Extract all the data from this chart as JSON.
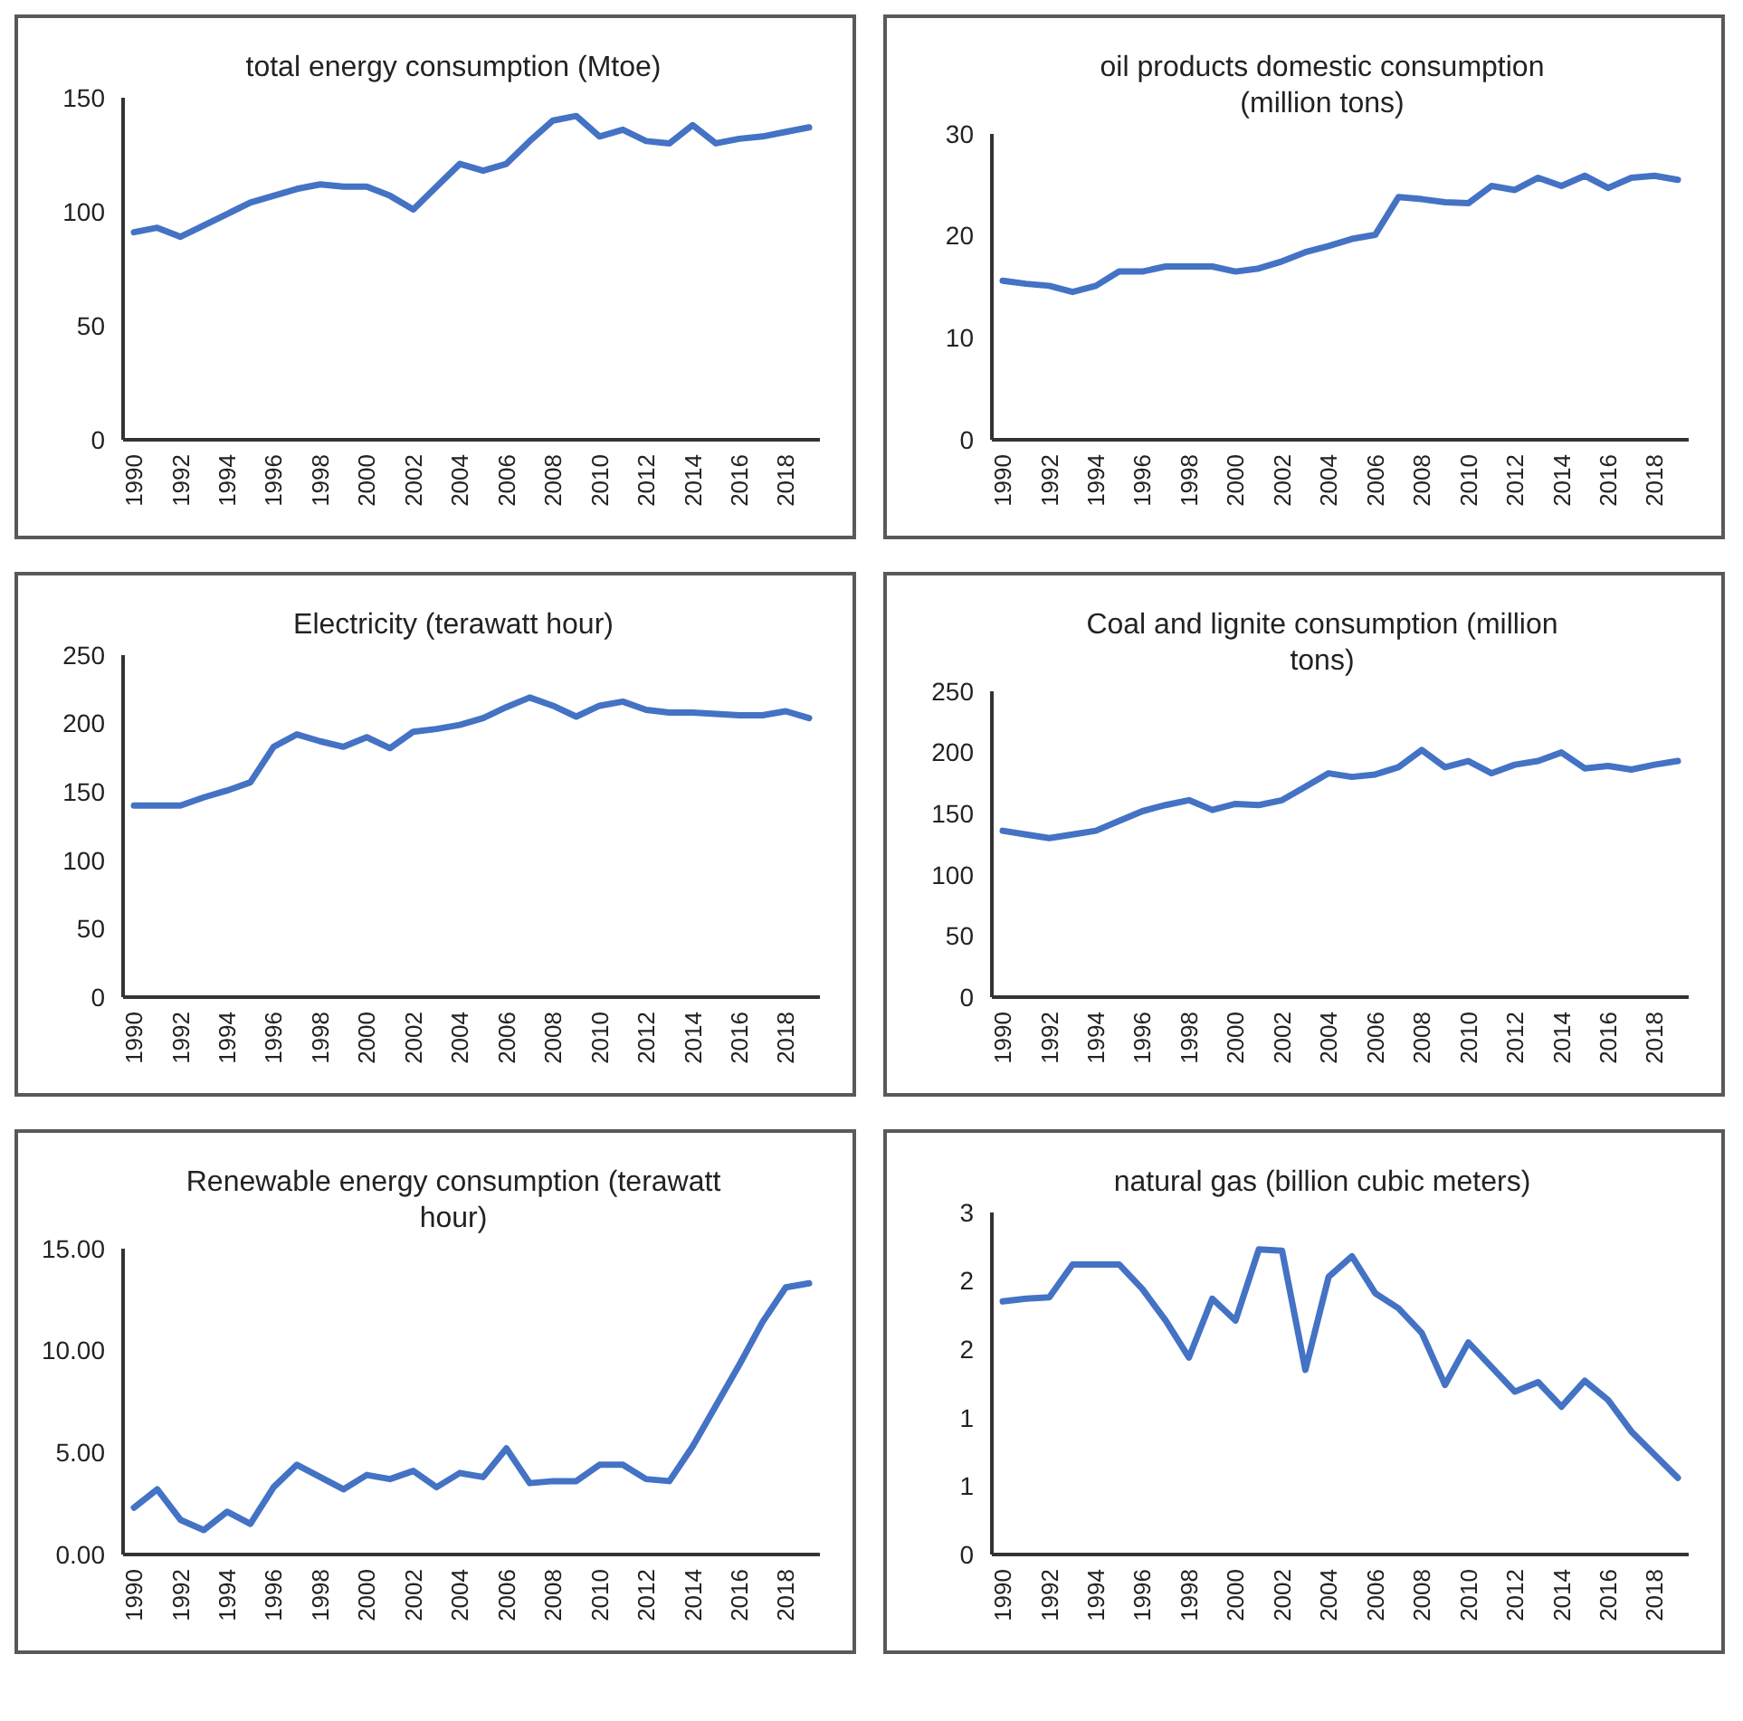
{
  "chart_data": [
    {
      "type": "line",
      "title": "total energy consumption (Mtoe)",
      "categories": [
        "1990",
        null,
        "1992",
        null,
        "1994",
        null,
        "1996",
        null,
        "1998",
        null,
        "2000",
        null,
        "2002",
        null,
        "2004",
        null,
        "2006",
        null,
        "2008",
        null,
        "2010",
        null,
        "2012",
        null,
        "2014",
        null,
        "2016",
        null,
        "2018",
        null
      ],
      "series": [
        {
          "color": "#4472c4",
          "values": [
            91,
            93,
            89,
            94,
            99,
            104,
            107,
            110,
            112,
            111,
            111,
            107,
            101,
            111,
            121,
            118,
            121,
            131,
            140,
            142,
            133,
            136,
            131,
            130,
            138,
            130,
            132,
            133,
            135,
            137
          ]
        }
      ],
      "ylim": [
        0,
        150
      ],
      "yticks": [
        0,
        50,
        100,
        150
      ]
    },
    {
      "type": "line",
      "title": "oil products domestic consumption (million tons)",
      "categories": [
        "1990",
        null,
        "1992",
        null,
        "1994",
        null,
        "1996",
        null,
        "1998",
        null,
        "2000",
        null,
        "2002",
        null,
        "2004",
        null,
        "2006",
        null,
        "2008",
        null,
        "2010",
        null,
        "2012",
        null,
        "2014",
        null,
        "2016",
        null,
        "2018",
        null
      ],
      "series": [
        {
          "color": "#4472c4",
          "values": [
            15.6,
            15.3,
            15.1,
            14.5,
            15.1,
            16.5,
            16.5,
            17.0,
            17.0,
            17.0,
            16.5,
            16.8,
            17.5,
            18.4,
            19.0,
            19.7,
            20.1,
            23.8,
            23.6,
            23.3,
            23.2,
            24.9,
            24.5,
            25.7,
            24.9,
            25.9,
            24.7,
            25.7,
            25.9,
            25.5
          ]
        }
      ],
      "ylim": [
        0,
        30
      ],
      "yticks": [
        0,
        10,
        20,
        30
      ]
    },
    {
      "type": "line",
      "title": "Electricity (terawatt hour)",
      "categories": [
        "1990",
        null,
        "1992",
        null,
        "1994",
        null,
        "1996",
        null,
        "1998",
        null,
        "2000",
        null,
        "2002",
        null,
        "2004",
        null,
        "2006",
        null,
        "2008",
        null,
        "2010",
        null,
        "2012",
        null,
        "2014",
        null,
        "2016",
        null,
        "2018",
        null
      ],
      "series": [
        {
          "color": "#4472c4",
          "values": [
            140,
            140,
            140,
            146,
            151,
            157,
            183,
            192,
            187,
            183,
            190,
            182,
            194,
            196,
            199,
            204,
            212,
            219,
            213,
            205,
            213,
            216,
            210,
            208,
            208,
            207,
            206,
            206,
            209,
            204
          ]
        }
      ],
      "ylim": [
        0,
        250
      ],
      "yticks": [
        0,
        50,
        100,
        150,
        200,
        250
      ]
    },
    {
      "type": "line",
      "title": "Coal and lignite consumption (million tons)",
      "categories": [
        "1990",
        null,
        "1992",
        null,
        "1994",
        null,
        "1996",
        null,
        "1998",
        null,
        "2000",
        null,
        "2002",
        null,
        "2004",
        null,
        "2006",
        null,
        "2008",
        null,
        "2010",
        null,
        "2012",
        null,
        "2014",
        null,
        "2016",
        null,
        "2018",
        null
      ],
      "series": [
        {
          "color": "#4472c4",
          "values": [
            136,
            133,
            130,
            133,
            136,
            144,
            152,
            157,
            161,
            153,
            158,
            157,
            161,
            172,
            183,
            180,
            182,
            188,
            202,
            188,
            193,
            183,
            190,
            193,
            200,
            187,
            189,
            186,
            190,
            193
          ]
        }
      ],
      "ylim": [
        0,
        250
      ],
      "yticks": [
        0,
        50,
        100,
        150,
        200,
        250
      ]
    },
    {
      "type": "line",
      "title": "Renewable energy consumption (terawatt hour)",
      "categories": [
        "1990",
        null,
        "1992",
        null,
        "1994",
        null,
        "1996",
        null,
        "1998",
        null,
        "2000",
        null,
        "2002",
        null,
        "2004",
        null,
        "2006",
        null,
        "2008",
        null,
        "2010",
        null,
        "2012",
        null,
        "2014",
        null,
        "2016",
        null,
        "2018",
        null
      ],
      "series": [
        {
          "color": "#4472c4",
          "values": [
            2.3,
            3.2,
            1.7,
            1.2,
            2.1,
            1.5,
            3.3,
            4.4,
            3.8,
            3.2,
            3.9,
            3.7,
            4.1,
            3.3,
            4.0,
            3.8,
            5.2,
            3.5,
            3.6,
            3.6,
            4.4,
            4.4,
            3.7,
            3.6,
            5.3,
            7.3,
            9.3,
            11.4,
            13.1,
            13.3
          ]
        }
      ],
      "ylim": [
        0,
        15
      ],
      "yticks": [
        {
          "value": 0,
          "label": "0.00"
        },
        {
          "value": 5,
          "label": "5.00"
        },
        {
          "value": 10,
          "label": "10.00"
        },
        {
          "value": 15,
          "label": "15.00"
        }
      ]
    },
    {
      "type": "line",
      "title": "natural gas (billion cubic meters)",
      "categories": [
        "1990",
        null,
        "1992",
        null,
        "1994",
        null,
        "1996",
        null,
        "1998",
        null,
        "2000",
        null,
        "2002",
        null,
        "2004",
        null,
        "2006",
        null,
        "2008",
        null,
        "2010",
        null,
        "2012",
        null,
        "2014",
        null,
        "2016",
        null,
        "2018",
        null
      ],
      "series": [
        {
          "color": "#4472c4",
          "values": [
            1.85,
            1.87,
            1.88,
            2.12,
            2.12,
            2.12,
            1.94,
            1.71,
            1.44,
            1.87,
            1.71,
            2.23,
            2.22,
            1.35,
            2.03,
            2.18,
            1.91,
            1.8,
            1.62,
            1.24,
            1.55,
            1.37,
            1.19,
            1.26,
            1.08,
            1.27,
            1.13,
            0.9,
            0.73,
            0.56
          ]
        }
      ],
      "ylim": [
        0,
        2.5
      ],
      "yticks": [
        0,
        {
          "value": 0.5,
          "label": "1"
        },
        1,
        {
          "value": 1.5,
          "label": "2"
        },
        2,
        {
          "value": 2.5,
          "label": "3"
        }
      ]
    }
  ]
}
